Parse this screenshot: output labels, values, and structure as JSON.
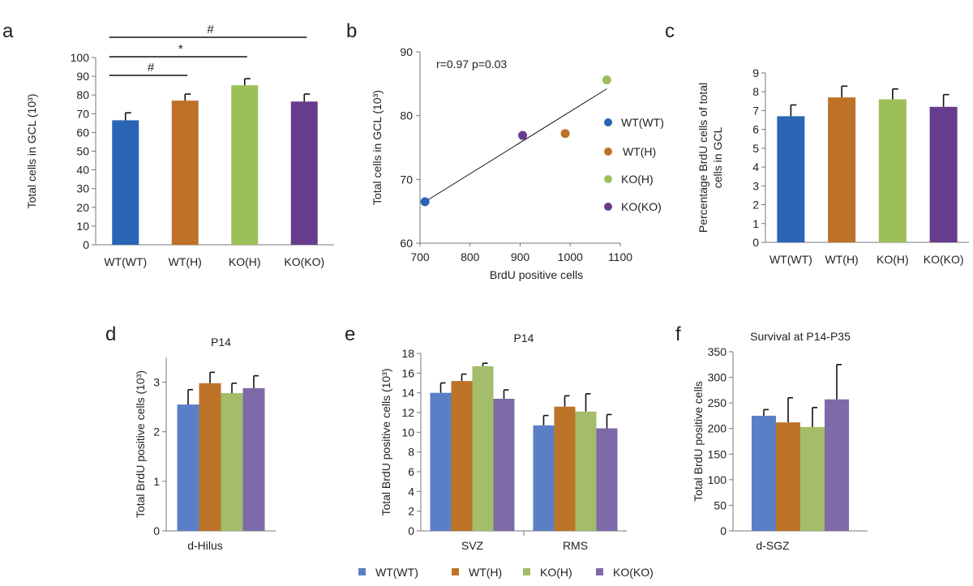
{
  "colors": {
    "a": [
      "#2a64b4",
      "#bd7228",
      "#9dbf59",
      "#673c8c"
    ],
    "c": [
      "#2a64b4",
      "#bd7228",
      "#9dbf59",
      "#673c8c"
    ],
    "p14": [
      "#5b7fc6",
      "#bd7428",
      "#a3bd6a",
      "#7e6aa8"
    ]
  },
  "legend": {
    "items": [
      "WT(WT)",
      "WT(H)",
      "KO(H)",
      "KO(KO)"
    ]
  },
  "chart_data": [
    {
      "id": "a",
      "panel_label": "a",
      "type": "bar",
      "title": "",
      "ylabel": "Total  cells in GCL (10³)",
      "xlabel": "",
      "categories": [
        "WT(WT)",
        "WT(H)",
        "KO(H)",
        "KO(KO)"
      ],
      "values": [
        66.5,
        77,
        85.2,
        76.5
      ],
      "errors": [
        4,
        3.5,
        3.5,
        4
      ],
      "ylim": [
        0,
        100
      ],
      "yticks": [
        "0",
        "10",
        "20",
        "30",
        "40",
        "50",
        "60",
        "70",
        "80",
        "90",
        "100"
      ],
      "significance": [
        {
          "from": 0,
          "to": 3,
          "label": "#"
        },
        {
          "from": 0,
          "to": 2,
          "label": "*"
        },
        {
          "from": 0,
          "to": 1,
          "label": "#"
        }
      ]
    },
    {
      "id": "b",
      "panel_label": "b",
      "type": "scatter",
      "title": "",
      "xlabel": "BrdU positive cells",
      "ylabel": "Total  cells in GCL (10³)",
      "xlim": [
        700,
        1100
      ],
      "ylim": [
        60,
        90
      ],
      "xticks": [
        "700",
        "800",
        "900",
        "1000",
        "1100"
      ],
      "yticks": [
        "60",
        "70",
        "80",
        "90"
      ],
      "annotation": "r=0.97 p=0.03",
      "points": [
        {
          "name": "WT(WT)",
          "x": 710,
          "y": 66.5
        },
        {
          "name": "WT(H)",
          "x": 990,
          "y": 77.2
        },
        {
          "name": "KO(H)",
          "x": 1073,
          "y": 85.6
        },
        {
          "name": "KO(KO)",
          "x": 905,
          "y": 76.9
        }
      ],
      "trendline": {
        "x1": 710,
        "y1": 66.5,
        "x2": 1073,
        "y2": 84.2
      },
      "legend": [
        "WT(WT)",
        "WT(H)",
        "KO(H)",
        "KO(KO)"
      ]
    },
    {
      "id": "c",
      "panel_label": "c",
      "type": "bar",
      "title": "",
      "ylabel": "Percentage BrdU cells of total cells in GCL",
      "ylabel_lines": [
        "Percentage BrdU cells of total",
        "cells in GCL"
      ],
      "xlabel": "",
      "categories": [
        "WT(WT)",
        "WT(H)",
        "KO(H)",
        "KO(KO)"
      ],
      "values": [
        6.7,
        7.7,
        7.6,
        7.2
      ],
      "errors": [
        0.6,
        0.6,
        0.55,
        0.65
      ],
      "ylim": [
        0,
        9
      ],
      "yticks": [
        "0",
        "1",
        "2",
        "3",
        "4",
        "5",
        "6",
        "7",
        "8",
        "9"
      ]
    },
    {
      "id": "d",
      "panel_label": "d",
      "type": "bar",
      "title": "P14",
      "ylabel": "Total  BrdU positive cells (10³)",
      "xlabel": "",
      "group_labels": [
        "d-Hilus"
      ],
      "series": [
        {
          "name": "WT(WT)",
          "values": [
            2.55
          ],
          "errors": [
            0.3
          ]
        },
        {
          "name": "WT(H)",
          "values": [
            2.98
          ],
          "errors": [
            0.22
          ]
        },
        {
          "name": "KO(H)",
          "values": [
            2.78
          ],
          "errors": [
            0.2
          ]
        },
        {
          "name": "KO(KO)",
          "values": [
            2.88
          ],
          "errors": [
            0.25
          ]
        }
      ],
      "ylim": [
        0,
        3.5
      ],
      "yticks": [
        "0",
        "1",
        "2",
        "3"
      ]
    },
    {
      "id": "e",
      "panel_label": "e",
      "type": "bar",
      "title": "P14",
      "ylabel": "Total  BrdU positive cells (10³)",
      "xlabel": "",
      "group_labels": [
        "SVZ",
        "RMS"
      ],
      "series": [
        {
          "name": "WT(WT)",
          "values": [
            14,
            10.7
          ],
          "errors": [
            1,
            1
          ]
        },
        {
          "name": "WT(H)",
          "values": [
            15.2,
            12.6
          ],
          "errors": [
            0.7,
            1.1
          ]
        },
        {
          "name": "KO(H)",
          "values": [
            16.7,
            12.1
          ],
          "errors": [
            0.3,
            1.8
          ]
        },
        {
          "name": "KO(KO)",
          "values": [
            13.4,
            10.4
          ],
          "errors": [
            0.9,
            1.4
          ]
        }
      ],
      "ylim": [
        0,
        18
      ],
      "yticks": [
        "0",
        "2",
        "4",
        "6",
        "8",
        "10",
        "12",
        "14",
        "16",
        "18"
      ]
    },
    {
      "id": "f",
      "panel_label": "f",
      "type": "bar",
      "title": "Survival  at P14-P35",
      "ylabel": "Total BrdU positive  cells",
      "xlabel": "",
      "group_labels": [
        "d-SGZ"
      ],
      "series": [
        {
          "name": "WT(WT)",
          "values": [
            225
          ],
          "errors": [
            12
          ]
        },
        {
          "name": "WT(H)",
          "values": [
            212
          ],
          "errors": [
            48
          ]
        },
        {
          "name": "KO(H)",
          "values": [
            203
          ],
          "errors": [
            38
          ]
        },
        {
          "name": "KO(KO)",
          "values": [
            257
          ],
          "errors": [
            68
          ]
        }
      ],
      "ylim": [
        0,
        350
      ],
      "yticks": [
        "0",
        "50",
        "100",
        "150",
        "200",
        "250",
        "300",
        "350"
      ]
    }
  ]
}
